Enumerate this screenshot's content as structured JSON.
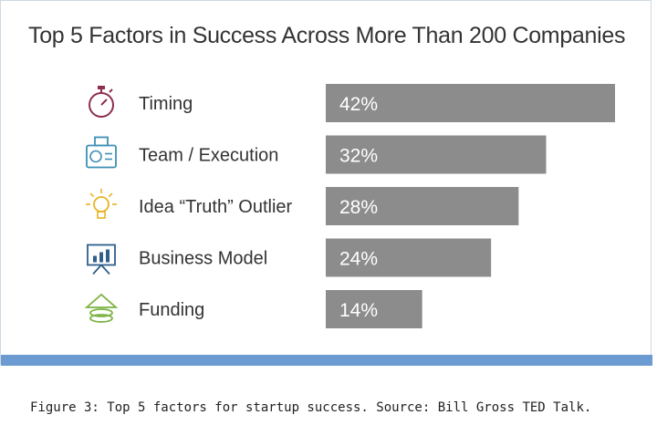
{
  "chart_data": {
    "type": "bar",
    "orientation": "horizontal",
    "title": "Top 5 Factors in Success Across More Than 200 Companies",
    "categories": [
      "Timing",
      "Team / Execution",
      "Idea “Truth” Outlier",
      "Business Model",
      "Funding"
    ],
    "values": [
      42,
      32,
      28,
      24,
      14
    ],
    "value_labels": [
      "42%",
      "32%",
      "28%",
      "24%",
      "14%"
    ],
    "icons": [
      "stopwatch-icon",
      "id-badge-icon",
      "lightbulb-icon",
      "presentation-chart-icon",
      "coin-stack-icon"
    ],
    "bar_color": "#8c8c8c",
    "grid": false,
    "axes_visible": false
  },
  "colors": {
    "stopwatch": "#8e2f4f",
    "badge": "#3f8fb4",
    "lightbulb": "#e6b422",
    "presentation": "#2f5f8a",
    "coins": "#7cb342",
    "accent_bar": "#6b9bd1"
  },
  "caption": "Figure 3: Top 5 factors for startup success. Source: Bill Gross TED Talk."
}
